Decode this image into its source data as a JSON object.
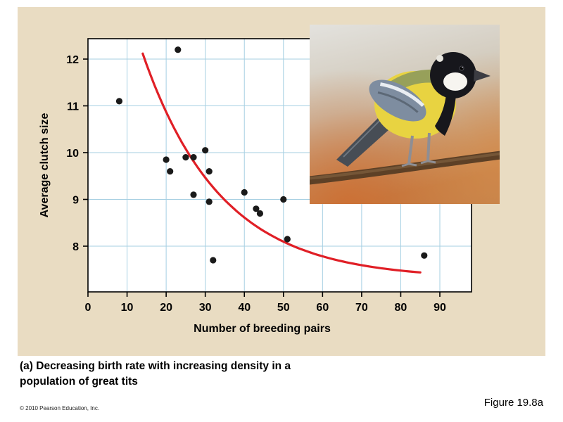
{
  "figure": {
    "caption": "(a) Decreasing birth rate with increasing density in a population of great tits",
    "figure_label": "Figure 19.8a",
    "copyright": "© 2010 Pearson Education, Inc.",
    "panel_color": "#e9dcc2"
  },
  "chart_data": {
    "type": "scatter",
    "title": "",
    "xlabel": "Number of breeding pairs",
    "ylabel": "Average clutch size",
    "xlim": [
      0,
      98
    ],
    "ylim": [
      7.0,
      12.45
    ],
    "xticks": [
      0,
      10,
      20,
      30,
      40,
      50,
      60,
      70,
      80,
      90
    ],
    "yticks": [
      8,
      9,
      10,
      11,
      12
    ],
    "grid": true,
    "grid_color": "#a5cfe2",
    "point_color": "#1a1a1a",
    "points": [
      [
        8,
        11.1
      ],
      [
        23,
        12.2
      ],
      [
        20,
        9.85
      ],
      [
        21,
        9.6
      ],
      [
        25,
        9.9
      ],
      [
        27,
        9.9
      ],
      [
        27,
        9.1
      ],
      [
        30,
        10.05
      ],
      [
        31,
        9.6
      ],
      [
        31,
        8.95
      ],
      [
        32,
        7.7
      ],
      [
        40,
        9.15
      ],
      [
        43,
        8.8
      ],
      [
        44,
        8.7
      ],
      [
        50,
        9.0
      ],
      [
        51,
        8.15
      ],
      [
        86,
        7.8
      ]
    ],
    "trend": {
      "type": "exponential_decay",
      "formula": "y = 7.3 + 9.7 * exp(-0.05 * x)",
      "a": 9.7,
      "b": 0.05,
      "c": 7.3,
      "x_range": [
        14,
        85
      ],
      "color": "#e01f26"
    }
  }
}
